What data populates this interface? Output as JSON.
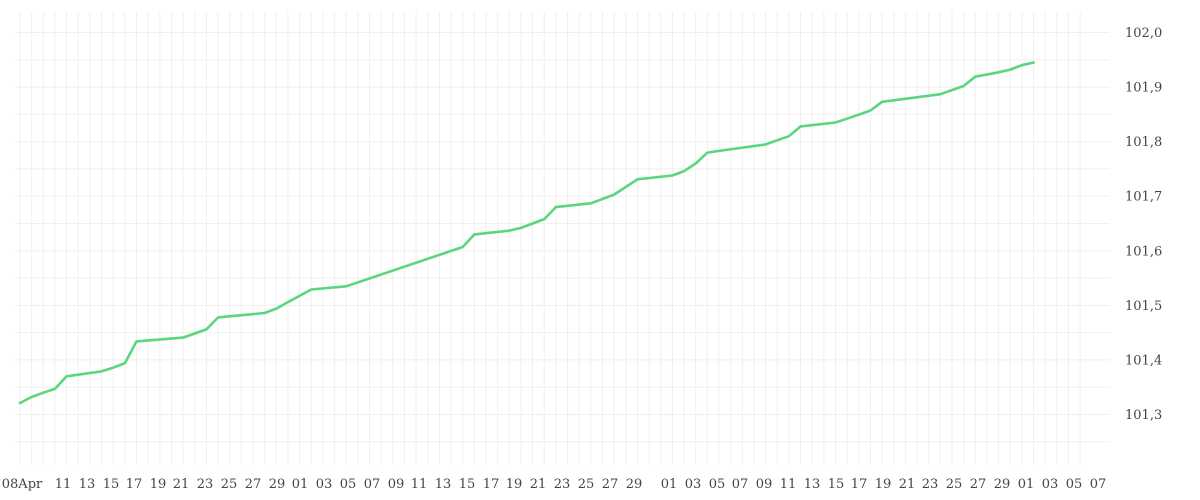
{
  "chart_data": {
    "type": "line",
    "title": "",
    "xlabel": "",
    "ylabel": "",
    "ylim": [
      101.2,
      102.02
    ],
    "grid": true,
    "line_color": "#5bd67f",
    "x_tick_labels": [
      "08Apr",
      "11",
      "13",
      "15",
      "17",
      "19",
      "21",
      "23",
      "25",
      "27",
      "29",
      "01",
      "03",
      "05",
      "07",
      "09",
      "11",
      "13",
      "15",
      "17",
      "19",
      "21",
      "23",
      "25",
      "27",
      "29",
      "01",
      "03",
      "05",
      "07",
      "09",
      "11",
      "13",
      "15",
      "17",
      "19",
      "21",
      "23",
      "25",
      "27",
      "29",
      "01",
      "03",
      "05",
      "07"
    ],
    "y_tick_labels": [
      "101,3",
      "101,4",
      "101,5",
      "101,6",
      "101,7",
      "101,8",
      "101,9",
      "102,0"
    ],
    "y_ticks": [
      101.3,
      101.4,
      101.5,
      101.6,
      101.7,
      101.8,
      101.9,
      102.0
    ],
    "series": [
      {
        "x": [
          "2024-04-08",
          "2024-04-09",
          "2024-04-10",
          "2024-04-11",
          "2024-04-12",
          "2024-04-15",
          "2024-04-16",
          "2024-04-17",
          "2024-04-18",
          "2024-04-22",
          "2024-04-24",
          "2024-04-25",
          "2024-04-26",
          "2024-04-29",
          "2024-04-30",
          "2024-05-01",
          "2024-05-03",
          "2024-05-06",
          "2024-05-16",
          "2024-05-17",
          "2024-05-20",
          "2024-05-21",
          "2024-05-22",
          "2024-05-23",
          "2024-05-24",
          "2024-05-27",
          "2024-05-29",
          "2024-05-31",
          "2024-06-03",
          "2024-06-04",
          "2024-06-05",
          "2024-06-06",
          "2024-06-07",
          "2024-06-11",
          "2024-06-13",
          "2024-06-14",
          "2024-06-17",
          "2024-06-18",
          "2024-06-20",
          "2024-06-21",
          "2024-06-26",
          "2024-06-28",
          "2024-06-29",
          "2024-07-01",
          "2024-07-02",
          "2024-07-03",
          "2024-07-04"
        ],
        "values": [
          101.321,
          101.332,
          101.34,
          101.347,
          101.37,
          101.379,
          101.386,
          101.394,
          101.434,
          101.441,
          101.456,
          101.478,
          101.48,
          101.486,
          101.494,
          101.506,
          101.529,
          101.535,
          101.607,
          101.63,
          101.637,
          101.642,
          101.65,
          101.658,
          101.68,
          101.687,
          101.703,
          101.731,
          101.738,
          101.746,
          101.76,
          101.78,
          101.783,
          101.795,
          101.81,
          101.828,
          101.835,
          101.842,
          101.857,
          101.873,
          101.887,
          101.902,
          101.919,
          101.927,
          101.932,
          101.94,
          101.945
        ]
      }
    ]
  }
}
